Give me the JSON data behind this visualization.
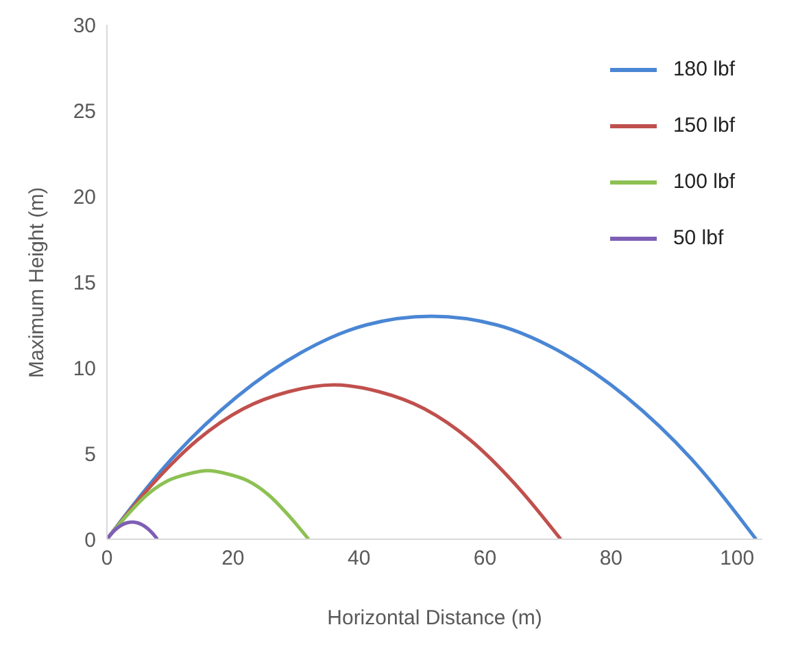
{
  "chart_data": {
    "type": "line",
    "xlabel": "Horizontal Distance (m)",
    "ylabel": "Maximum Height (m)",
    "xlim": [
      0,
      104
    ],
    "xticks": [
      0,
      20,
      40,
      60,
      80,
      100
    ],
    "ylim": [
      0,
      30
    ],
    "yticks": [
      0,
      5,
      10,
      15,
      20,
      25,
      30
    ],
    "grid": false,
    "legend": "top right",
    "marker": "none",
    "line_style": "solid",
    "series": [
      {
        "name": "180 lbf",
        "color": "#4a86d4",
        "x": [
          0,
          10.3,
          20.6,
          30.9,
          41.2,
          51.5,
          61.8,
          72.1,
          82.4,
          92.7,
          103
        ],
        "values": [
          0,
          4.7,
          8.3,
          10.9,
          12.5,
          13,
          12.5,
          10.9,
          8.3,
          4.7,
          0
        ]
      },
      {
        "name": "150 lbf",
        "color": "#c0504d",
        "x": [
          0,
          7.2,
          14.4,
          21.6,
          28.8,
          36,
          43.2,
          50.4,
          57.6,
          64.8,
          72
        ],
        "values": [
          0,
          3.2,
          5.8,
          7.6,
          8.6,
          9,
          8.6,
          7.6,
          5.8,
          3.2,
          0
        ]
      },
      {
        "name": "100 lbf",
        "color": "#8dc153",
        "x": [
          0,
          3.2,
          6.4,
          9.6,
          12.8,
          16,
          19.2,
          22.4,
          25.6,
          28.8,
          32
        ],
        "values": [
          0,
          1.4,
          2.6,
          3.4,
          3.8,
          4,
          3.8,
          3.4,
          2.6,
          1.4,
          0
        ]
      },
      {
        "name": "50 lbf",
        "color": "#7e5fb5",
        "x": [
          0,
          0.8,
          1.6,
          2.4,
          3.2,
          4,
          4.8,
          5.6,
          6.4,
          7.2,
          8
        ],
        "values": [
          0,
          0.36,
          0.64,
          0.84,
          0.96,
          1,
          0.96,
          0.84,
          0.64,
          0.36,
          0
        ]
      }
    ]
  }
}
